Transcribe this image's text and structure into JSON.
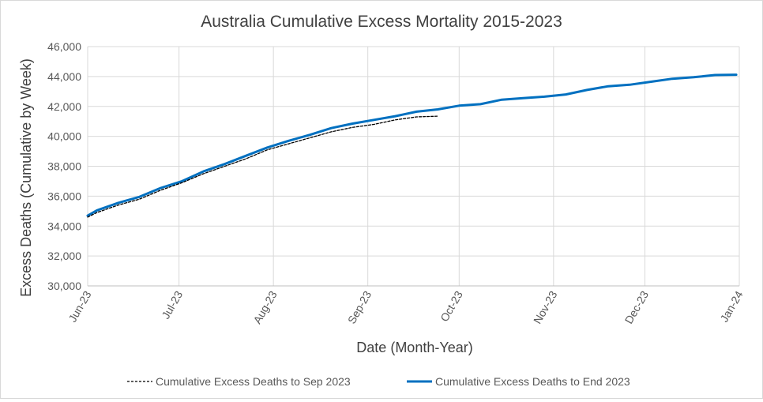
{
  "chart_data": {
    "type": "line",
    "title": "Australia Cumulative Excess Mortality 2015-2023",
    "xlabel": "Date (Month-Year)",
    "ylabel": "Excess Deaths (Cumulative by Week)",
    "x_ticks": [
      "Jun-23",
      "Jul-23",
      "Aug-23",
      "Sep-23",
      "Oct-23",
      "Nov-23",
      "Dec-23",
      "Jan-24"
    ],
    "xlim": [
      "2023-06-01",
      "2024-01-01"
    ],
    "y_ticks": [
      "30,000",
      "32,000",
      "34,000",
      "36,000",
      "38,000",
      "40,000",
      "42,000",
      "44,000",
      "46,000"
    ],
    "ylim": [
      30000,
      46000
    ],
    "grid": true,
    "legend_position": "bottom",
    "series": [
      {
        "name": "Cumulative Excess Deaths to Sep 2023",
        "style": "dashed",
        "color": "#000000",
        "x": [
          "2023-06-01",
          "2023-06-04",
          "2023-06-11",
          "2023-06-18",
          "2023-06-25",
          "2023-07-02",
          "2023-07-09",
          "2023-07-16",
          "2023-07-23",
          "2023-07-30",
          "2023-08-06",
          "2023-08-13",
          "2023-08-20",
          "2023-08-27",
          "2023-09-03",
          "2023-09-10",
          "2023-09-17",
          "2023-09-24"
        ],
        "y": [
          34600,
          34900,
          35400,
          35800,
          36400,
          36900,
          37500,
          38000,
          38500,
          39100,
          39500,
          39900,
          40300,
          40600,
          40800,
          41100,
          41300,
          41350
        ]
      },
      {
        "name": "Cumulative Excess Deaths to End 2023",
        "style": "solid",
        "color": "#0070c0",
        "x": [
          "2023-06-01",
          "2023-06-04",
          "2023-06-11",
          "2023-06-18",
          "2023-06-25",
          "2023-07-02",
          "2023-07-09",
          "2023-07-16",
          "2023-07-23",
          "2023-07-30",
          "2023-08-06",
          "2023-08-13",
          "2023-08-20",
          "2023-08-27",
          "2023-09-03",
          "2023-09-10",
          "2023-09-17",
          "2023-09-24",
          "2023-10-01",
          "2023-10-08",
          "2023-10-15",
          "2023-10-22",
          "2023-10-29",
          "2023-11-05",
          "2023-11-12",
          "2023-11-19",
          "2023-11-26",
          "2023-12-03",
          "2023-12-10",
          "2023-12-17",
          "2023-12-24",
          "2023-12-31"
        ],
        "y": [
          34700,
          35050,
          35550,
          35950,
          36550,
          37000,
          37650,
          38150,
          38700,
          39250,
          39700,
          40100,
          40550,
          40850,
          41100,
          41350,
          41650,
          41800,
          42050,
          42150,
          42450,
          42550,
          42650,
          42800,
          43100,
          43350,
          43450,
          43650,
          43850,
          43950,
          44100,
          44120
        ]
      }
    ]
  }
}
